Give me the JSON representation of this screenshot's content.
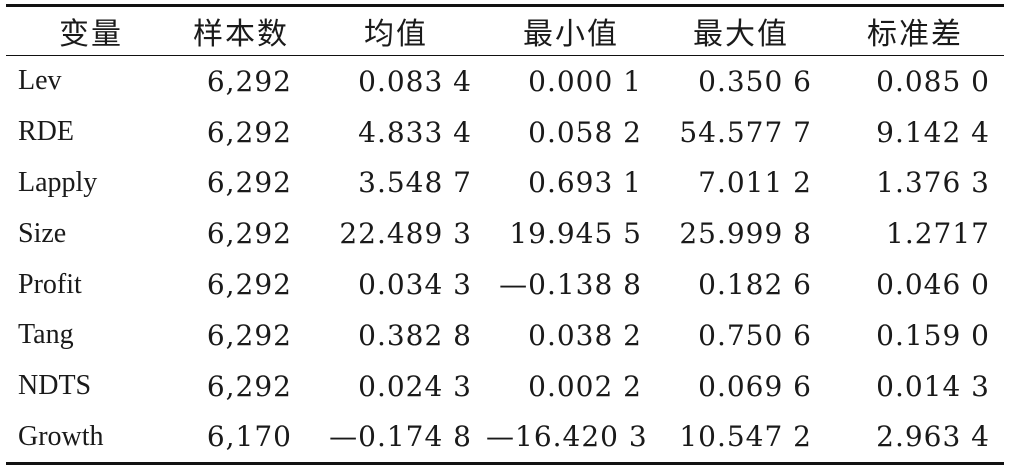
{
  "table": {
    "headers": [
      "变量",
      "样本数",
      "均值",
      "最小值",
      "最大值",
      "标准差"
    ],
    "rows": [
      {
        "name": "Lev",
        "n": "6,292",
        "mean": "0.083 4",
        "min": "0.000 1",
        "max": "0.350 6",
        "sd": "0.085 0"
      },
      {
        "name": "RDE",
        "n": "6,292",
        "mean": "4.833 4",
        "min": "0.058 2",
        "max": "54.577 7",
        "sd": "9.142 4"
      },
      {
        "name": "Lapply",
        "n": "6,292",
        "mean": "3.548 7",
        "min": "0.693 1",
        "max": "7.011 2",
        "sd": "1.376 3"
      },
      {
        "name": "Size",
        "n": "6,292",
        "mean": "22.489 3",
        "min": "19.945 5",
        "max": "25.999 8",
        "sd": "1.2717"
      },
      {
        "name": "Profit",
        "n": "6,292",
        "mean": "0.034 3",
        "min": "—0.138 8",
        "max": "0.182 6",
        "sd": "0.046 0"
      },
      {
        "name": "Tang",
        "n": "6,292",
        "mean": "0.382 8",
        "min": "0.038 2",
        "max": "0.750 6",
        "sd": "0.159 0"
      },
      {
        "name": "NDTS",
        "n": "6,292",
        "mean": "0.024 3",
        "min": "0.002 2",
        "max": "0.069 6",
        "sd": "0.014 3"
      },
      {
        "name": "Growth",
        "n": "6,170",
        "mean": "—0.174 8",
        "min": "—16.420 3",
        "max": "10.547 2",
        "sd": "2.963 4"
      }
    ]
  }
}
